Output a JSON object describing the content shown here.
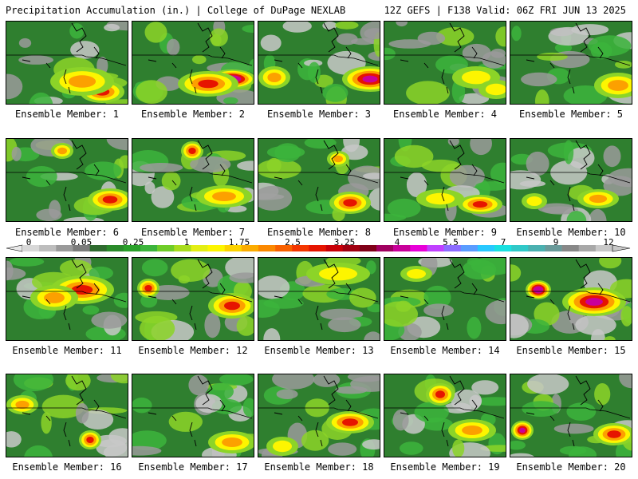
{
  "header": {
    "left": "Precipitation Accumulation (in.) | College of DuPage NEXLAB",
    "right": "12Z GEFS | F138 Valid: 06Z FRI JUN 13 2025"
  },
  "panels": [
    {
      "label": "Ensemble Member: 1"
    },
    {
      "label": "Ensemble Member: 2"
    },
    {
      "label": "Ensemble Member: 3"
    },
    {
      "label": "Ensemble Member: 4"
    },
    {
      "label": "Ensemble Member: 5"
    },
    {
      "label": "Ensemble Member: 6"
    },
    {
      "label": "Ensemble Member: 7"
    },
    {
      "label": "Ensemble Member: 8"
    },
    {
      "label": "Ensemble Member: 9"
    },
    {
      "label": "Ensemble Member: 10"
    },
    {
      "label": "Ensemble Member: 11"
    },
    {
      "label": "Ensemble Member: 12"
    },
    {
      "label": "Ensemble Member: 13"
    },
    {
      "label": "Ensemble Member: 14"
    },
    {
      "label": "Ensemble Member: 15"
    },
    {
      "label": "Ensemble Member: 16"
    },
    {
      "label": "Ensemble Member: 17"
    },
    {
      "label": "Ensemble Member: 18"
    },
    {
      "label": "Ensemble Member: 19"
    },
    {
      "label": "Ensemble Member: 20"
    }
  ],
  "colorbar": {
    "ticks": [
      "0",
      "0.05",
      "0.25",
      "1",
      "1.75",
      "2.5",
      "3.25",
      "4",
      "5.5",
      "7",
      "9",
      "12"
    ],
    "colors": [
      "#d8d8d8",
      "#bdbdbd",
      "#9a9a9a",
      "#7c7c7c",
      "#2f6b2f",
      "#2a8a2a",
      "#2aa02a",
      "#3cb43c",
      "#6fcc28",
      "#a8dc1e",
      "#e3ee14",
      "#fdf500",
      "#fcd200",
      "#fcac00",
      "#fb8800",
      "#f86000",
      "#f43600",
      "#e61400",
      "#c80008",
      "#a00010",
      "#800018",
      "#a00060",
      "#c8009a",
      "#e800d8",
      "#c040ff",
      "#8c6cff",
      "#5a9cff",
      "#28c8ff",
      "#1ae0e0",
      "#30c8c8",
      "#4ab0b0",
      "#6a9a9a",
      "#888888",
      "#a8a8a8",
      "#c8c8c8"
    ]
  }
}
